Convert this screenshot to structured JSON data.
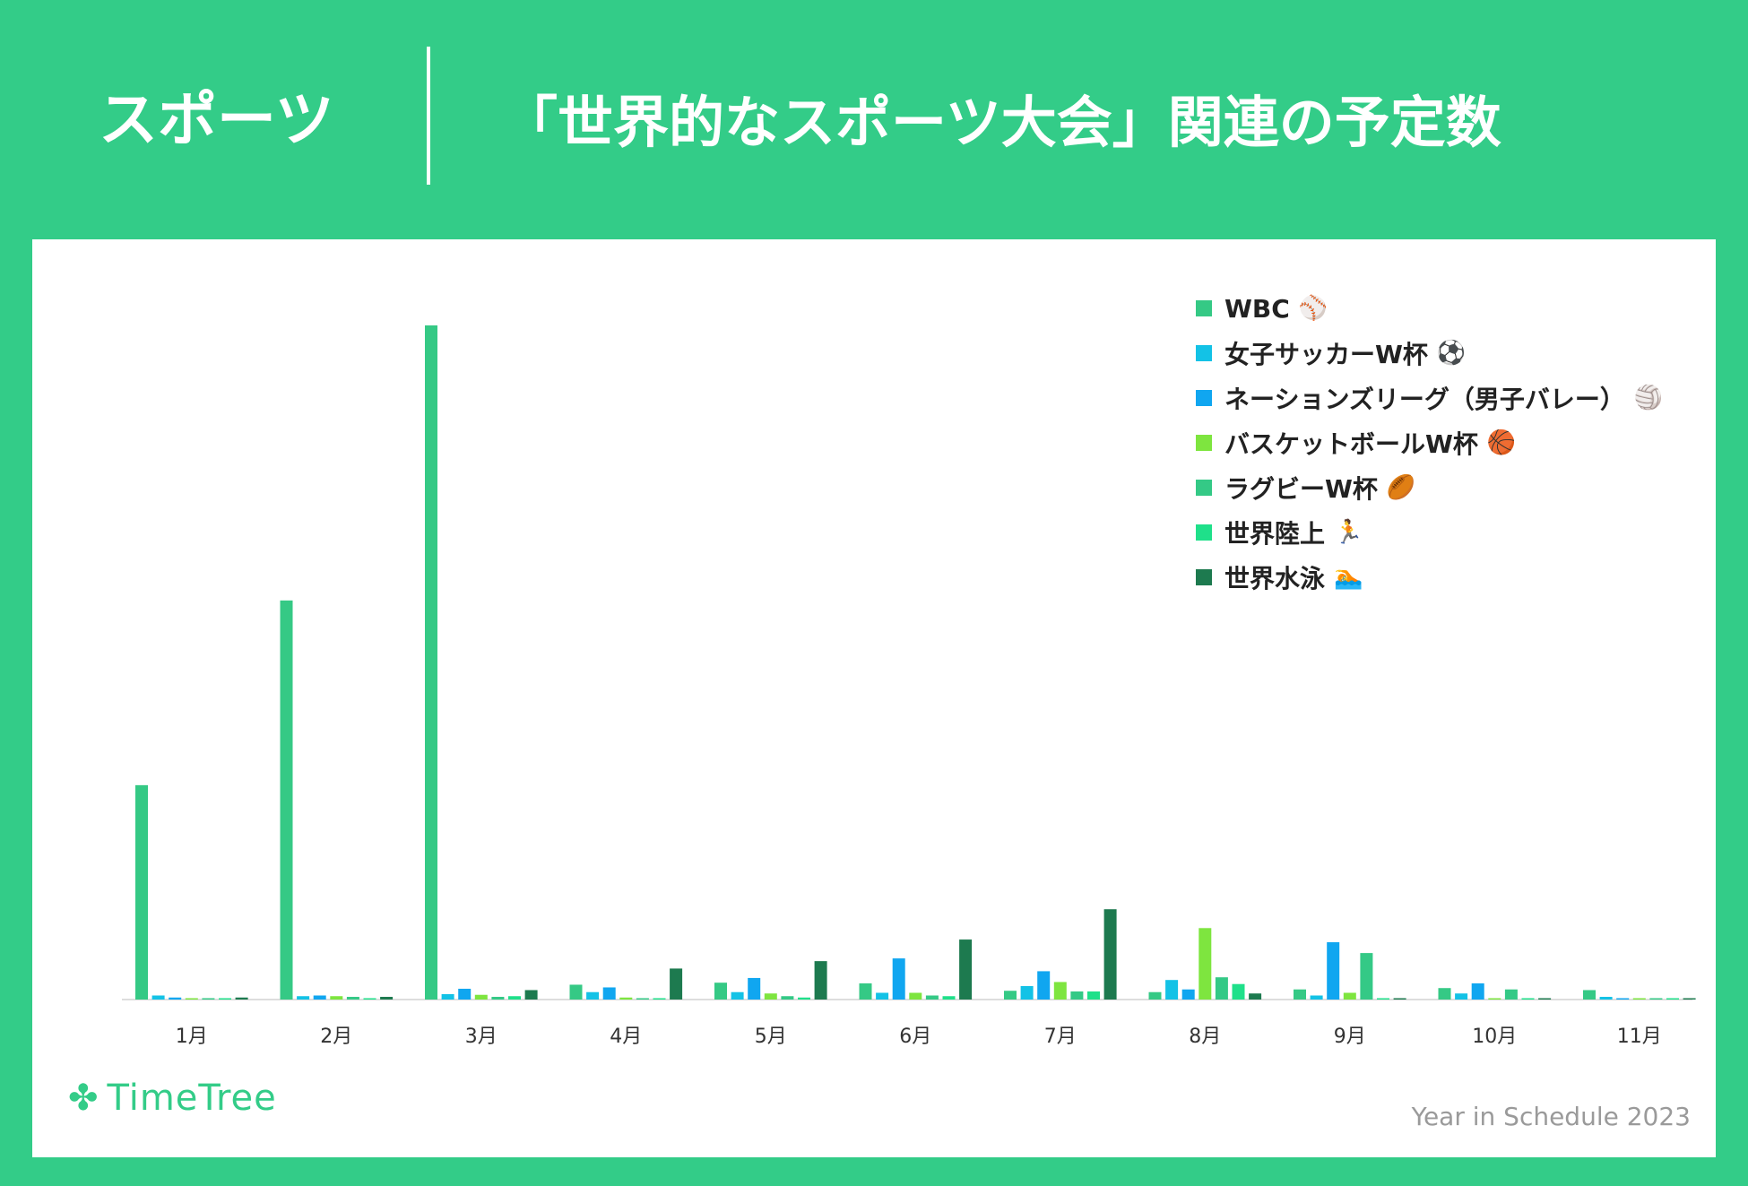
{
  "header": {
    "category": "スポーツ",
    "title": "「世界的なスポーツ大会」関連の予定数"
  },
  "brand": {
    "name": "TimeTree",
    "icon": "leaf-clover-icon"
  },
  "footer": {
    "note": "Year in Schedule 2023"
  },
  "colors": {
    "background": "#33cc88",
    "panel": "#ffffff",
    "axis": "#dddddd",
    "tick_text": "#333333"
  },
  "chart_data": {
    "type": "bar",
    "title": "「世界的なスポーツ大会」関連の予定数",
    "xlabel": "",
    "ylabel": "",
    "categories": [
      "1月",
      "2月",
      "3月",
      "4月",
      "5月",
      "6月",
      "7月",
      "8月",
      "9月",
      "10月",
      "11月"
    ],
    "ylim": [
      0,
      100
    ],
    "grid": false,
    "legend_position": "top-right",
    "series": [
      {
        "name": "WBC",
        "icon": "⚾",
        "color": "#35c985",
        "values": [
          31.8,
          59.2,
          100,
          2.2,
          2.5,
          2.4,
          1.3,
          1.1,
          1.5,
          1.7,
          1.4
        ]
      },
      {
        "name": "女子サッカーW杯",
        "icon": "⚽",
        "color": "#13c2e6",
        "values": [
          0.6,
          0.5,
          0.8,
          1.1,
          1.1,
          1.0,
          2.0,
          2.9,
          0.6,
          0.9,
          0.4
        ]
      },
      {
        "name": "ネーションズリーグ（男子バレー）",
        "icon": "🏐",
        "color": "#10a6f0",
        "values": [
          0.3,
          0.6,
          1.6,
          1.8,
          3.2,
          6.1,
          4.2,
          1.5,
          8.5,
          2.4,
          0.1
        ]
      },
      {
        "name": "バスケットボールW杯",
        "icon": "🏀",
        "color": "#7ee53f",
        "values": [
          0.2,
          0.5,
          0.7,
          0.3,
          0.9,
          1.0,
          2.6,
          10.6,
          1.0,
          0.1,
          0.1
        ]
      },
      {
        "name": "ラグビーW杯",
        "icon": "🏉",
        "color": "#34c986",
        "values": [
          0.2,
          0.4,
          0.4,
          0.2,
          0.5,
          0.6,
          1.2,
          3.3,
          6.9,
          1.5,
          0.1
        ]
      },
      {
        "name": "世界陸上",
        "icon": "🏃",
        "color": "#1fe08a",
        "values": [
          0.1,
          0.1,
          0.5,
          0.2,
          0.3,
          0.5,
          1.2,
          2.3,
          0.1,
          0.1,
          0.1
        ]
      },
      {
        "name": "世界水泳",
        "icon": "🏊",
        "color": "#1d7a4f",
        "values": [
          0.3,
          0.4,
          1.4,
          4.6,
          5.7,
          8.9,
          13.4,
          0.9,
          0.1,
          0.1,
          0.2
        ]
      }
    ]
  }
}
